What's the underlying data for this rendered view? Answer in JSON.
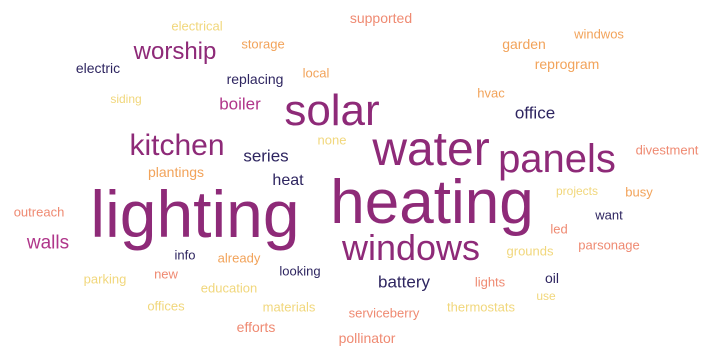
{
  "colors": {
    "plum": "#8e2a78",
    "magenta": "#b0368a",
    "navy": "#2e2560",
    "salmon": "#ef8a72",
    "orange": "#f2a35a",
    "yellow": "#f1d77c"
  },
  "words": [
    {
      "text": "lighting",
      "color": "plum"
    },
    {
      "text": "heating",
      "color": "plum"
    },
    {
      "text": "water",
      "color": "plum"
    },
    {
      "text": "solar",
      "color": "plum"
    },
    {
      "text": "panels",
      "color": "plum"
    },
    {
      "text": "windows",
      "color": "plum"
    },
    {
      "text": "kitchen",
      "color": "plum"
    },
    {
      "text": "worship",
      "color": "plum"
    },
    {
      "text": "walls",
      "color": "magenta"
    },
    {
      "text": "boiler",
      "color": "magenta"
    },
    {
      "text": "series",
      "color": "navy"
    },
    {
      "text": "heat",
      "color": "navy"
    },
    {
      "text": "battery",
      "color": "navy"
    },
    {
      "text": "office",
      "color": "navy"
    },
    {
      "text": "electric",
      "color": "navy"
    },
    {
      "text": "replacing",
      "color": "navy"
    },
    {
      "text": "info",
      "color": "navy"
    },
    {
      "text": "looking",
      "color": "navy"
    },
    {
      "text": "want",
      "color": "navy"
    },
    {
      "text": "oil",
      "color": "navy"
    },
    {
      "text": "supported",
      "color": "salmon"
    },
    {
      "text": "storage",
      "color": "orange"
    },
    {
      "text": "electrical",
      "color": "yellow"
    },
    {
      "text": "local",
      "color": "orange"
    },
    {
      "text": "garden",
      "color": "orange"
    },
    {
      "text": "windwos",
      "color": "orange"
    },
    {
      "text": "reprogram",
      "color": "orange"
    },
    {
      "text": "hvac",
      "color": "orange"
    },
    {
      "text": "siding",
      "color": "yellow"
    },
    {
      "text": "none",
      "color": "yellow"
    },
    {
      "text": "plantings",
      "color": "orange"
    },
    {
      "text": "divestment",
      "color": "salmon"
    },
    {
      "text": "outreach",
      "color": "salmon"
    },
    {
      "text": "busy",
      "color": "orange"
    },
    {
      "text": "projects",
      "color": "yellow"
    },
    {
      "text": "led",
      "color": "salmon"
    },
    {
      "text": "already",
      "color": "orange"
    },
    {
      "text": "grounds",
      "color": "yellow"
    },
    {
      "text": "parsonage",
      "color": "salmon"
    },
    {
      "text": "new",
      "color": "salmon"
    },
    {
      "text": "parking",
      "color": "yellow"
    },
    {
      "text": "education",
      "color": "yellow"
    },
    {
      "text": "lights",
      "color": "salmon"
    },
    {
      "text": "offices",
      "color": "yellow"
    },
    {
      "text": "materials",
      "color": "yellow"
    },
    {
      "text": "serviceberry",
      "color": "salmon"
    },
    {
      "text": "thermostats",
      "color": "yellow"
    },
    {
      "text": "use",
      "color": "yellow"
    },
    {
      "text": "efforts",
      "color": "salmon"
    },
    {
      "text": "pollinator",
      "color": "salmon"
    }
  ]
}
